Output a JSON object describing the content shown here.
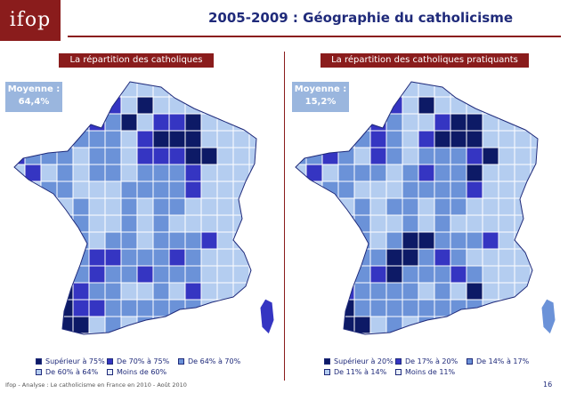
{
  "header": {
    "logo_text": "ifop",
    "title": "2005-2009 : Géographie du catholicisme"
  },
  "colors": {
    "class1": "#0d1a66",
    "class2": "#3535c2",
    "class3": "#6b92d8",
    "class4": "#b4cdf0",
    "class5": "#e6edf8",
    "border": "#ffffff",
    "accent": "#8a1c1c"
  },
  "panels": [
    {
      "label": "La répartition des catholiques",
      "average_label": "Moyenne :",
      "average_value": "64,4%",
      "legend": [
        {
          "label": "Supérieur à 75%",
          "class": "class1"
        },
        {
          "label": "De 70% à 75%",
          "class": "class2"
        },
        {
          "label": "De 64% à 70%",
          "class": "class3"
        },
        {
          "label": "De 60% à 64%",
          "class": "class4"
        },
        {
          "label": "Moins de 60%",
          "class": "class5"
        }
      ]
    },
    {
      "label": "La répartition des catholiques pratiquants",
      "average_label": "Moyenne :",
      "average_value": "15,2%",
      "legend": [
        {
          "label": "Supérieur à 20%",
          "class": "class1"
        },
        {
          "label": "De 17% à 20%",
          "class": "class2"
        },
        {
          "label": "De 14% à 17%",
          "class": "class3"
        },
        {
          "label": "De 11% à 14%",
          "class": "class4"
        },
        {
          "label": "Moins de 11%",
          "class": "class5"
        }
      ]
    }
  ],
  "footer": {
    "source": "Ifop - Analyse : Le catholicisme en France en 2010 - Août 2010",
    "page_number": "16"
  }
}
